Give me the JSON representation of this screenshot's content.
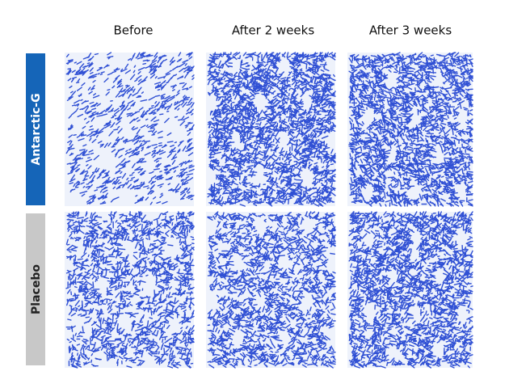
{
  "columns": [
    "Before",
    "After 2 weeks",
    "After 3 weeks"
  ],
  "rows": [
    "Antarctic-G",
    "Placebo"
  ]
}
